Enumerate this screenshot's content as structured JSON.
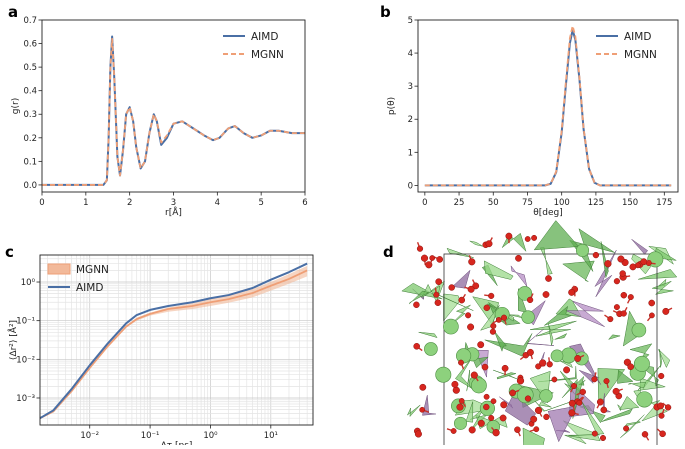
{
  "colors": {
    "aimd": "#4a6fa5",
    "mgnn": "#ef9f76",
    "mgnn_band": "#f2b99a"
  },
  "chart_data": [
    {
      "id": "a",
      "panel_label": "a",
      "type": "line",
      "title": "",
      "xlabel": "r[Å]",
      "ylabel": "g(r)",
      "xlim": [
        0,
        6
      ],
      "ylim": [
        -0.03,
        0.7
      ],
      "xticks": [
        0,
        1,
        2,
        3,
        4,
        5,
        6
      ],
      "xtick_labels": [
        "0",
        "1",
        "2",
        "3",
        "4",
        "5",
        "6"
      ],
      "yticks": [
        0,
        0.1,
        0.2,
        0.3,
        0.4,
        0.5,
        0.6,
        0.7
      ],
      "ytick_labels": [
        "0.0",
        "0.1",
        "0.2",
        "0.3",
        "0.4",
        "0.5",
        "0.6",
        "0.7"
      ],
      "legend": "top-right",
      "series": [
        {
          "name": "AIMD",
          "style": "solid",
          "x": [
            0,
            1.4,
            1.48,
            1.52,
            1.56,
            1.6,
            1.65,
            1.72,
            1.78,
            1.85,
            1.92,
            2.0,
            2.08,
            2.15,
            2.25,
            2.35,
            2.45,
            2.55,
            2.62,
            2.72,
            2.85,
            3.0,
            3.2,
            3.45,
            3.7,
            3.9,
            4.05,
            4.25,
            4.4,
            4.6,
            4.8,
            5.0,
            5.2,
            5.4,
            5.7,
            6.0
          ],
          "y": [
            0,
            0,
            0.02,
            0.2,
            0.5,
            0.63,
            0.45,
            0.12,
            0.04,
            0.15,
            0.3,
            0.33,
            0.27,
            0.16,
            0.07,
            0.1,
            0.22,
            0.3,
            0.27,
            0.17,
            0.2,
            0.26,
            0.27,
            0.24,
            0.21,
            0.19,
            0.2,
            0.24,
            0.25,
            0.22,
            0.2,
            0.21,
            0.23,
            0.23,
            0.22,
            0.22
          ]
        },
        {
          "name": "MGNN",
          "style": "dashed",
          "x": [
            0,
            1.4,
            1.48,
            1.52,
            1.56,
            1.6,
            1.65,
            1.72,
            1.78,
            1.85,
            1.92,
            2.0,
            2.08,
            2.15,
            2.25,
            2.35,
            2.45,
            2.55,
            2.62,
            2.72,
            2.85,
            3.0,
            3.2,
            3.45,
            3.7,
            3.9,
            4.05,
            4.25,
            4.4,
            4.6,
            4.8,
            5.0,
            5.2,
            5.4,
            5.7,
            6.0
          ],
          "y": [
            0,
            0,
            0.02,
            0.2,
            0.5,
            0.62,
            0.45,
            0.12,
            0.04,
            0.15,
            0.3,
            0.33,
            0.27,
            0.16,
            0.07,
            0.1,
            0.22,
            0.3,
            0.27,
            0.18,
            0.21,
            0.26,
            0.27,
            0.24,
            0.21,
            0.19,
            0.2,
            0.24,
            0.25,
            0.22,
            0.2,
            0.21,
            0.23,
            0.23,
            0.22,
            0.22
          ]
        }
      ]
    },
    {
      "id": "b",
      "panel_label": "b",
      "type": "line",
      "title": "",
      "xlabel": "θ[deg]",
      "ylabel": "p(θ)",
      "xlim": [
        -5,
        185
      ],
      "ylim": [
        -0.2,
        5
      ],
      "xticks": [
        0,
        25,
        50,
        75,
        100,
        125,
        150,
        175
      ],
      "xtick_labels": [
        "0",
        "25",
        "50",
        "75",
        "100",
        "125",
        "150",
        "175"
      ],
      "yticks": [
        0,
        1,
        2,
        3,
        4,
        5
      ],
      "ytick_labels": [
        "0",
        "1",
        "2",
        "3",
        "4",
        "5"
      ],
      "legend": "top-right",
      "series": [
        {
          "name": "AIMD",
          "style": "solid",
          "x": [
            0,
            88,
            92,
            96,
            100,
            103,
            106,
            108,
            110,
            113,
            116,
            120,
            124,
            128,
            180
          ],
          "y": [
            0,
            0,
            0.05,
            0.4,
            1.6,
            3.0,
            4.3,
            4.7,
            4.4,
            3.2,
            1.7,
            0.5,
            0.08,
            0,
            0
          ]
        },
        {
          "name": "MGNN",
          "style": "dashed",
          "x": [
            0,
            88,
            92,
            96,
            100,
            103,
            106,
            108,
            110,
            113,
            116,
            120,
            124,
            128,
            180
          ],
          "y": [
            0,
            0,
            0.05,
            0.42,
            1.65,
            3.1,
            4.45,
            4.82,
            4.5,
            3.25,
            1.72,
            0.5,
            0.08,
            0,
            0
          ]
        }
      ]
    },
    {
      "id": "c",
      "panel_label": "c",
      "type": "line",
      "title": "",
      "xlabel": "Δτ [ps]",
      "ylabel": "⟨Δr²⟩ [Å²]",
      "xscale": "log",
      "yscale": "log",
      "xlim": [
        0.0015,
        50
      ],
      "ylim": [
        0.0002,
        5
      ],
      "xticks": [
        0.01,
        0.1,
        1,
        10
      ],
      "xtick_labels": [
        "10⁻²",
        "10⁻¹",
        "10⁰",
        "10¹"
      ],
      "yticks": [
        0.001,
        0.01,
        0.1,
        1
      ],
      "ytick_labels": [
        "10⁻³",
        "10⁻²",
        "10⁻¹",
        "10⁰"
      ],
      "grid": true,
      "legend": "top-left",
      "series": [
        {
          "name": "MGNN",
          "style": "solid",
          "x": [
            0.0015,
            0.0025,
            0.005,
            0.01,
            0.02,
            0.04,
            0.06,
            0.1,
            0.2,
            0.5,
            1,
            2,
            5,
            10,
            20,
            40
          ],
          "y": [
            0.0003,
            0.00045,
            0.0015,
            0.006,
            0.022,
            0.07,
            0.11,
            0.15,
            0.2,
            0.24,
            0.3,
            0.36,
            0.52,
            0.8,
            1.2,
            2.0
          ],
          "band_low": [
            0.0003,
            0.00045,
            0.0015,
            0.0058,
            0.021,
            0.066,
            0.1,
            0.135,
            0.17,
            0.2,
            0.24,
            0.29,
            0.4,
            0.6,
            0.9,
            1.4
          ],
          "band_high": [
            0.0003,
            0.00045,
            0.0015,
            0.0062,
            0.023,
            0.074,
            0.12,
            0.16,
            0.22,
            0.28,
            0.36,
            0.44,
            0.65,
            1.0,
            1.6,
            2.6
          ]
        },
        {
          "name": "AIMD",
          "style": "solid",
          "x": [
            0.0015,
            0.0025,
            0.005,
            0.01,
            0.02,
            0.04,
            0.06,
            0.1,
            0.2,
            0.5,
            1,
            2,
            5,
            10,
            20,
            40
          ],
          "y": [
            0.0003,
            0.00048,
            0.0017,
            0.007,
            0.026,
            0.085,
            0.14,
            0.19,
            0.24,
            0.3,
            0.38,
            0.46,
            0.7,
            1.15,
            1.8,
            3.0
          ]
        }
      ]
    }
  ],
  "panel_d": {
    "panel_label": "d"
  }
}
